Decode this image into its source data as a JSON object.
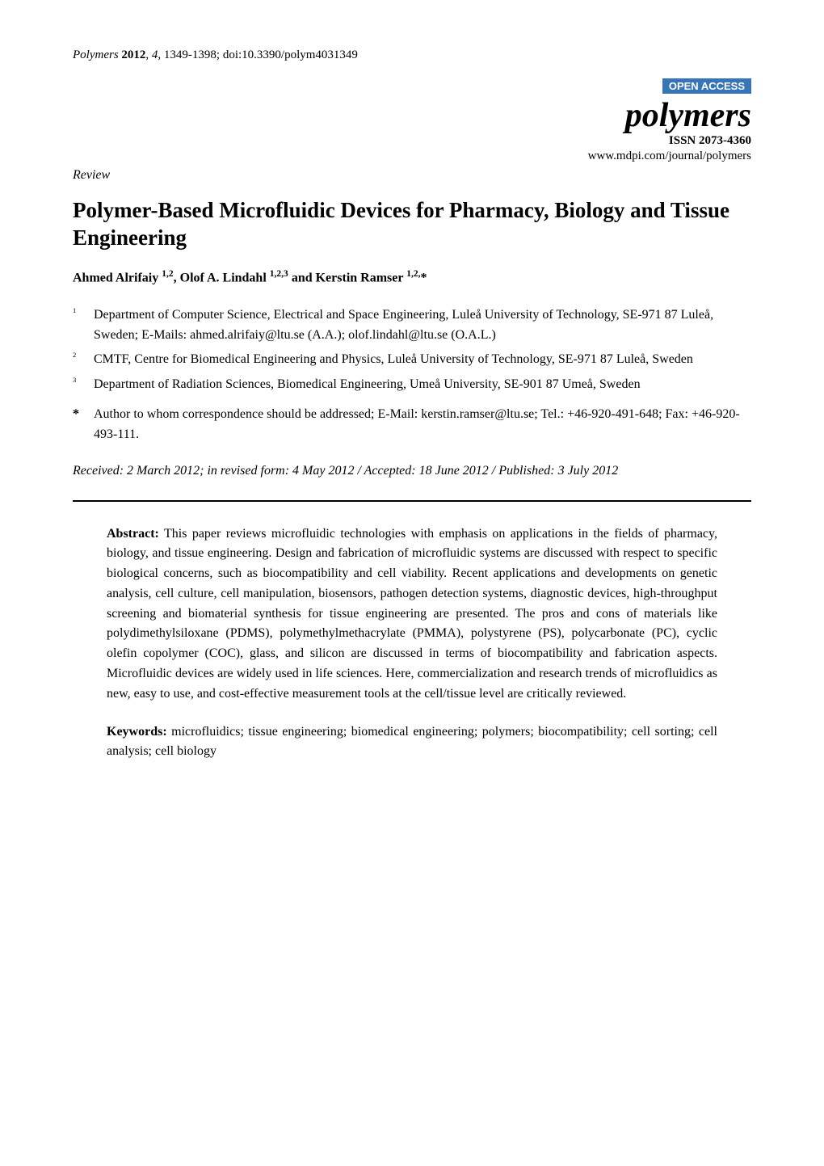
{
  "header": {
    "journal_name": "Polymers",
    "year": "2012",
    "volume": "4",
    "pages": "1349-1398",
    "doi": "doi:10.3390/polym4031349",
    "open_access_badge": "OPEN ACCESS",
    "logo_text": "polymers",
    "logo_color": "#000000",
    "issn": "ISSN 2073-4360",
    "journal_url": "www.mdpi.com/journal/polymers",
    "badge_bg": "#3875b7",
    "badge_fg": "#ffffff"
  },
  "article_type": "Review",
  "title": "Polymer-Based Microfluidic Devices for Pharmacy, Biology and Tissue Engineering",
  "authors_line": "Ahmed Alrifaiy 1,2, Olof A. Lindahl 1,2,3 and Kerstin Ramser 1,2,*",
  "authors_html": "Ahmed Alrifaiy <sup>1,2</sup>, Olof A. Lindahl <sup>1,2,3</sup> and Kerstin Ramser <sup>1,2,</sup>*",
  "affiliations": [
    {
      "num": "1",
      "text": "Department of Computer Science, Electrical and Space Engineering, Luleå University of Technology, SE-971 87 Luleå, Sweden; E-Mails: ahmed.alrifaiy@ltu.se (A.A.); olof.lindahl@ltu.se (O.A.L.)"
    },
    {
      "num": "2",
      "text": "CMTF, Centre for Biomedical Engineering and Physics, Luleå University of Technology, SE-971 87 Luleå, Sweden"
    },
    {
      "num": "3",
      "text": "Department of Radiation Sciences, Biomedical Engineering, Umeå University, SE-901 87 Umeå, Sweden"
    }
  ],
  "correspondence": {
    "marker": "*",
    "text": "Author to whom correspondence should be addressed; E-Mail: kerstin.ramser@ltu.se; Tel.: +46-920-491-648; Fax: +46-920-493-111."
  },
  "dates": "Received: 2 March 2012; in revised form: 4 May 2012 / Accepted: 18 June 2012 / Published: 3 July 2012",
  "abstract": {
    "label": "Abstract:",
    "text": "This paper reviews microfluidic technologies with emphasis on applications in the fields of pharmacy, biology, and tissue engineering. Design and fabrication of microfluidic systems are discussed with respect to specific biological concerns, such as biocompatibility and cell viability. Recent applications and developments on genetic analysis, cell culture, cell manipulation, biosensors, pathogen detection systems, diagnostic devices, high-throughput screening and biomaterial synthesis for tissue engineering are presented. The pros and cons of materials like polydimethylsiloxane (PDMS), polymethylmethacrylate (PMMA), polystyrene (PS), polycarbonate (PC), cyclic olefin copolymer (COC), glass, and silicon are discussed in terms of biocompatibility and fabrication aspects. Microfluidic devices are widely used in life sciences. Here, commercialization and research trends of microfluidics as new, easy to use, and cost-effective measurement tools at the cell/tissue level are critically reviewed."
  },
  "keywords": {
    "label": "Keywords:",
    "text": "microfluidics; tissue engineering; biomedical engineering; polymers; biocompatibility; cell sorting; cell analysis; cell biology"
  },
  "typography": {
    "body_font": "Times New Roman",
    "title_fontsize_pt": 20,
    "body_fontsize_pt": 12,
    "logo_fontsize_pt": 32
  }
}
